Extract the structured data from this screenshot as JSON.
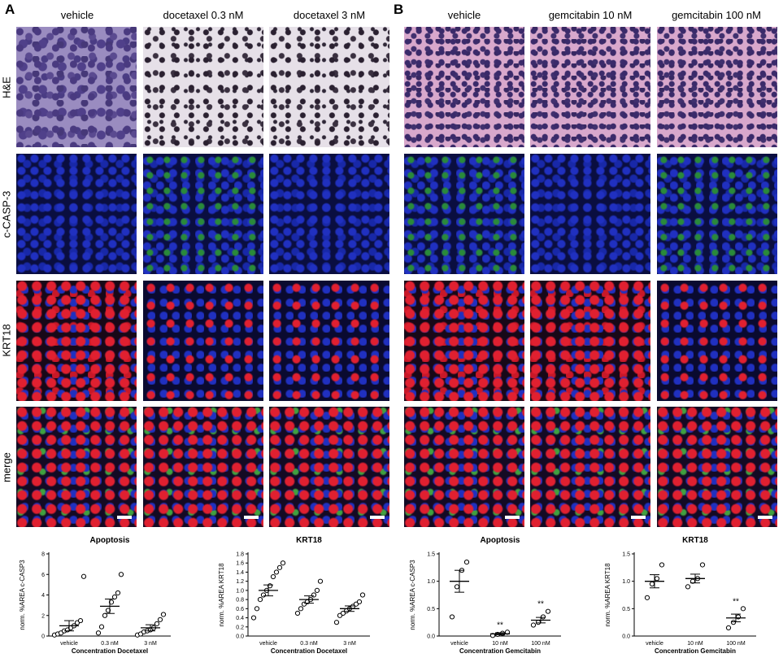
{
  "panels": {
    "A": {
      "letter": "A",
      "columns": [
        "vehicle",
        "docetaxel 0.3 nM",
        "docetaxel 3 nM"
      ]
    },
    "B": {
      "letter": "B",
      "columns": [
        "vehicle",
        "gemcitabin 10 nM",
        "gemcitabin 100 nM"
      ]
    }
  },
  "rows": [
    "H&E",
    "c-CASP-3",
    "KRT18",
    "merge"
  ],
  "chart_data": [
    {
      "type": "scatter",
      "title": "Apoptosis",
      "ylabel": "norm. %AREA c-CASP3",
      "xlabel": "Concentration Docetaxel",
      "categories": [
        "vehicle",
        "0.3 nM",
        "3 nM"
      ],
      "ylim": [
        0,
        8
      ],
      "yticks": [
        "0",
        "2",
        "4",
        "6",
        "8"
      ],
      "points": [
        [
          0.1,
          0.2,
          0.3,
          0.5,
          0.6,
          0.8,
          1.0,
          1.3,
          1.5,
          5.8
        ],
        [
          0.3,
          0.9,
          2.0,
          2.5,
          3.3,
          3.8,
          4.2,
          6.0
        ],
        [
          0.1,
          0.2,
          0.4,
          0.5,
          0.6,
          0.8,
          1.2,
          1.6,
          2.1
        ]
      ],
      "mean": [
        1.0,
        2.9,
        0.8
      ],
      "sem": [
        0.5,
        0.7,
        0.3
      ],
      "significance": [
        "",
        "",
        ""
      ]
    },
    {
      "type": "scatter",
      "title": "KRT18",
      "ylabel": "norm. %AREA KRT18",
      "xlabel": "Concentration Docetaxel",
      "categories": [
        "vehicle",
        "0.3 nM",
        "3 nM"
      ],
      "ylim": [
        0,
        1.8
      ],
      "yticks": [
        "0.0",
        "0.2",
        "0.4",
        "0.6",
        "0.8",
        "1.0",
        "1.2",
        "1.4",
        "1.6",
        "1.8"
      ],
      "points": [
        [
          0.4,
          0.6,
          0.8,
          0.9,
          1.0,
          1.1,
          1.3,
          1.4,
          1.5,
          1.6
        ],
        [
          0.5,
          0.6,
          0.7,
          0.75,
          0.8,
          0.9,
          1.0,
          1.2
        ],
        [
          0.3,
          0.45,
          0.5,
          0.55,
          0.6,
          0.65,
          0.7,
          0.75,
          0.9
        ]
      ],
      "mean": [
        1.0,
        0.8,
        0.6
      ],
      "sem": [
        0.12,
        0.08,
        0.06
      ],
      "significance": [
        "",
        "",
        ""
      ]
    },
    {
      "type": "scatter",
      "title": "Apoptosis",
      "ylabel": "norm. %AREA c-CASP3",
      "xlabel": "Concentration Gemcitabin",
      "categories": [
        "vehicle",
        "10 nM",
        "100 nM"
      ],
      "ylim": [
        0,
        1.5
      ],
      "yticks": [
        "0.0",
        "0.5",
        "1.0",
        "1.5"
      ],
      "points": [
        [
          0.35,
          0.9,
          1.2,
          1.35
        ],
        [
          0.01,
          0.03,
          0.05,
          0.07
        ],
        [
          0.2,
          0.25,
          0.35,
          0.45
        ]
      ],
      "mean": [
        1.0,
        0.04,
        0.29
      ],
      "sem": [
        0.2,
        0.02,
        0.05
      ],
      "significance": [
        "",
        "**",
        "**"
      ]
    },
    {
      "type": "scatter",
      "title": "KRT18",
      "ylabel": "norm. %AREA KRT18",
      "xlabel": "Concentration Gemcitabin",
      "categories": [
        "vehicle",
        "10 nM",
        "100 nM"
      ],
      "ylim": [
        0,
        1.5
      ],
      "yticks": [
        "0.0",
        "0.5",
        "1.0",
        "1.5"
      ],
      "points": [
        [
          0.7,
          0.95,
          1.05,
          1.3
        ],
        [
          0.9,
          1.0,
          1.05,
          1.3
        ],
        [
          0.15,
          0.25,
          0.35,
          0.5
        ]
      ],
      "mean": [
        1.0,
        1.05,
        0.33
      ],
      "sem": [
        0.12,
        0.08,
        0.07
      ],
      "significance": [
        "",
        "",
        "**"
      ]
    }
  ]
}
